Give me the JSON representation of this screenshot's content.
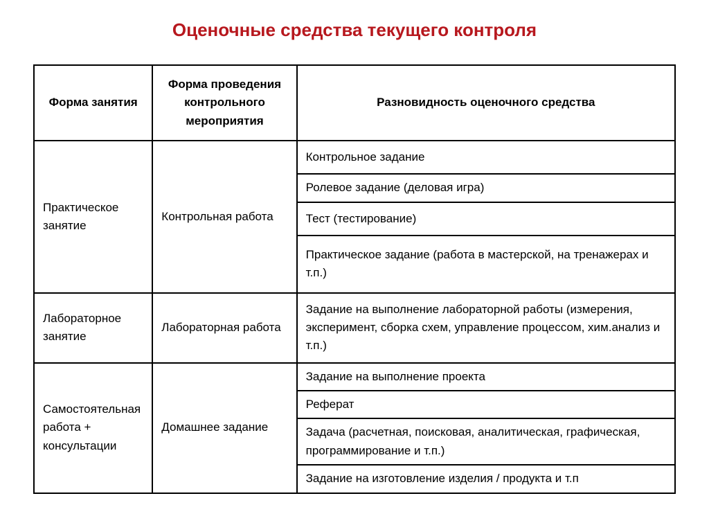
{
  "title": "Оценочные средства текущего контроля",
  "title_color": "#b7181e",
  "columns": [
    "Форма занятия",
    "Форма проведения контрольного мероприятия",
    "Разновидность оценочного средства"
  ],
  "groups": [
    {
      "form": "Практическое занятие",
      "event": "Контрольная работа",
      "variants": [
        "Контрольное задание",
        "Ролевое задание (деловая игра)",
        "Тест (тестирование)",
        "Практическое задание (работа в мастерской, на тренажерах и т.п.)"
      ]
    },
    {
      "form": "Лабораторное занятие",
      "event": "Лабораторная работа",
      "variants": [
        "Задание на выполнение лабораторной работы (измерения, эксперимент, сборка схем, управление процессом, хим.анализ и т.п.)"
      ]
    },
    {
      "form": "Самостоятельная работа + консультации",
      "event": "Домашнее задание",
      "variants": [
        "Задание на выполнение проекта",
        "Реферат",
        "Задача (расчетная,  поисковая, аналитическая, графическая, программирование и т.п.)",
        "Задание на изготовление изделия / продукта и т.п"
      ]
    }
  ]
}
